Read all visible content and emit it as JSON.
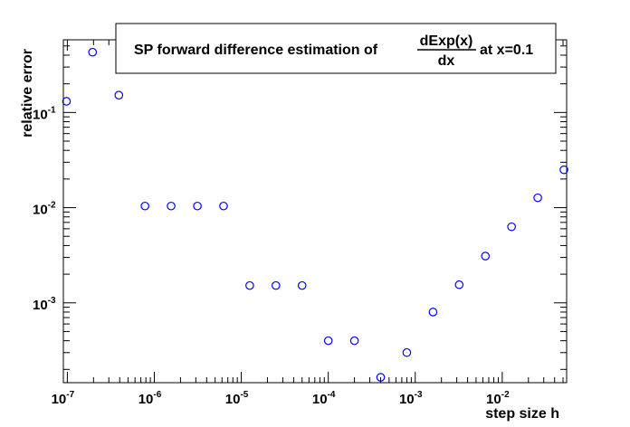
{
  "chart_data": {
    "type": "scatter",
    "title": {
      "prefix": "SP forward difference estimation of",
      "numerator": "dExp(x)",
      "denominator": "dx",
      "suffix": "at x=0.1"
    },
    "xlabel": "step size h",
    "ylabel": "relative error",
    "x_scale": "log",
    "y_scale": "log",
    "xlim": [
      9e-08,
      0.055
    ],
    "ylim": [
      0.000145,
      0.58
    ],
    "x_ticks": [
      {
        "base": "10",
        "exp": "-7",
        "value": 1e-07
      },
      {
        "base": "10",
        "exp": "-6",
        "value": 1e-06
      },
      {
        "base": "10",
        "exp": "-5",
        "value": 1e-05
      },
      {
        "base": "10",
        "exp": "-4",
        "value": 0.0001
      },
      {
        "base": "10",
        "exp": "-3",
        "value": 0.001
      },
      {
        "base": "10",
        "exp": "-2",
        "value": 0.01
      }
    ],
    "y_ticks": [
      {
        "base": "10",
        "exp": "-1",
        "value": 0.1
      },
      {
        "base": "10",
        "exp": "-2",
        "value": 0.01
      },
      {
        "base": "10",
        "exp": "-3",
        "value": 0.001
      }
    ],
    "marker_color": "#0000ff",
    "series": [
      {
        "points": [
          {
            "x": 9.77e-08,
            "y": 0.131
          },
          {
            "x": 1.95e-07,
            "y": 0.43
          },
          {
            "x": 3.91e-07,
            "y": 0.152
          },
          {
            "x": 7.81e-07,
            "y": 0.0104
          },
          {
            "x": 1.56e-06,
            "y": 0.0104
          },
          {
            "x": 3.13e-06,
            "y": 0.0104
          },
          {
            "x": 6.25e-06,
            "y": 0.0104
          },
          {
            "x": 1.25e-05,
            "y": 0.00152
          },
          {
            "x": 2.5e-05,
            "y": 0.00152
          },
          {
            "x": 5e-05,
            "y": 0.00152
          },
          {
            "x": 0.0001,
            "y": 0.0004
          },
          {
            "x": 0.0002,
            "y": 0.0004
          },
          {
            "x": 0.0004,
            "y": 0.000165
          },
          {
            "x": 0.0008,
            "y": 0.0003
          },
          {
            "x": 0.0016,
            "y": 0.0008
          },
          {
            "x": 0.0032,
            "y": 0.00155
          },
          {
            "x": 0.0064,
            "y": 0.0031
          },
          {
            "x": 0.0128,
            "y": 0.0063
          },
          {
            "x": 0.0256,
            "y": 0.0127
          },
          {
            "x": 0.0512,
            "y": 0.025
          }
        ]
      }
    ],
    "grid": false,
    "legend": "none"
  }
}
